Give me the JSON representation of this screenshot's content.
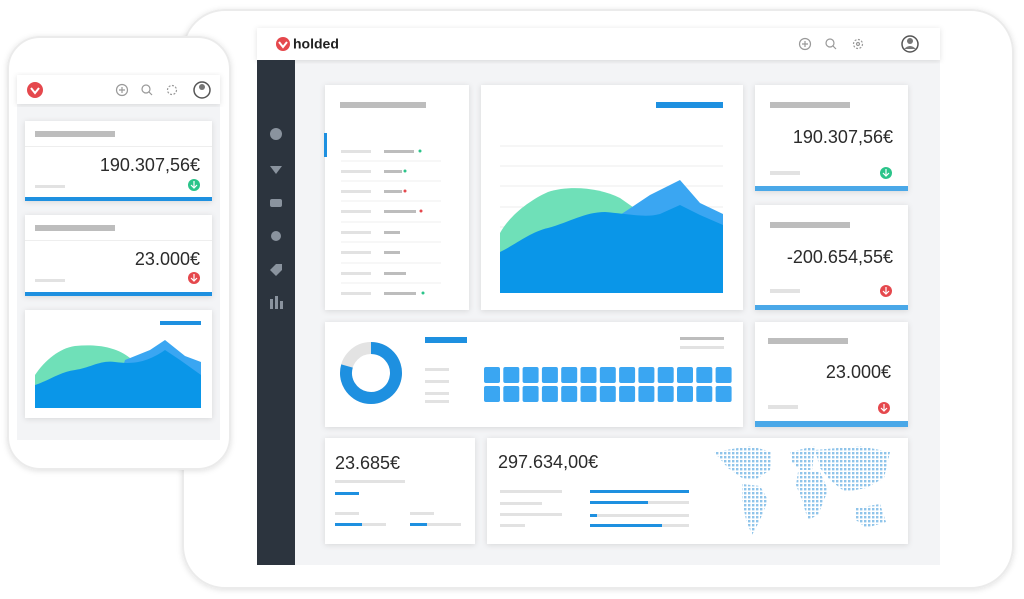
{
  "tablet": {
    "brand": "holded",
    "cards": [
      "190.307,56€",
      "-200.654,55€",
      "23.000€"
    ],
    "summary": [
      "23.685€",
      "297.634,00€"
    ]
  },
  "phone": {
    "cards": [
      "190.307,56€",
      "23.000€"
    ]
  }
}
